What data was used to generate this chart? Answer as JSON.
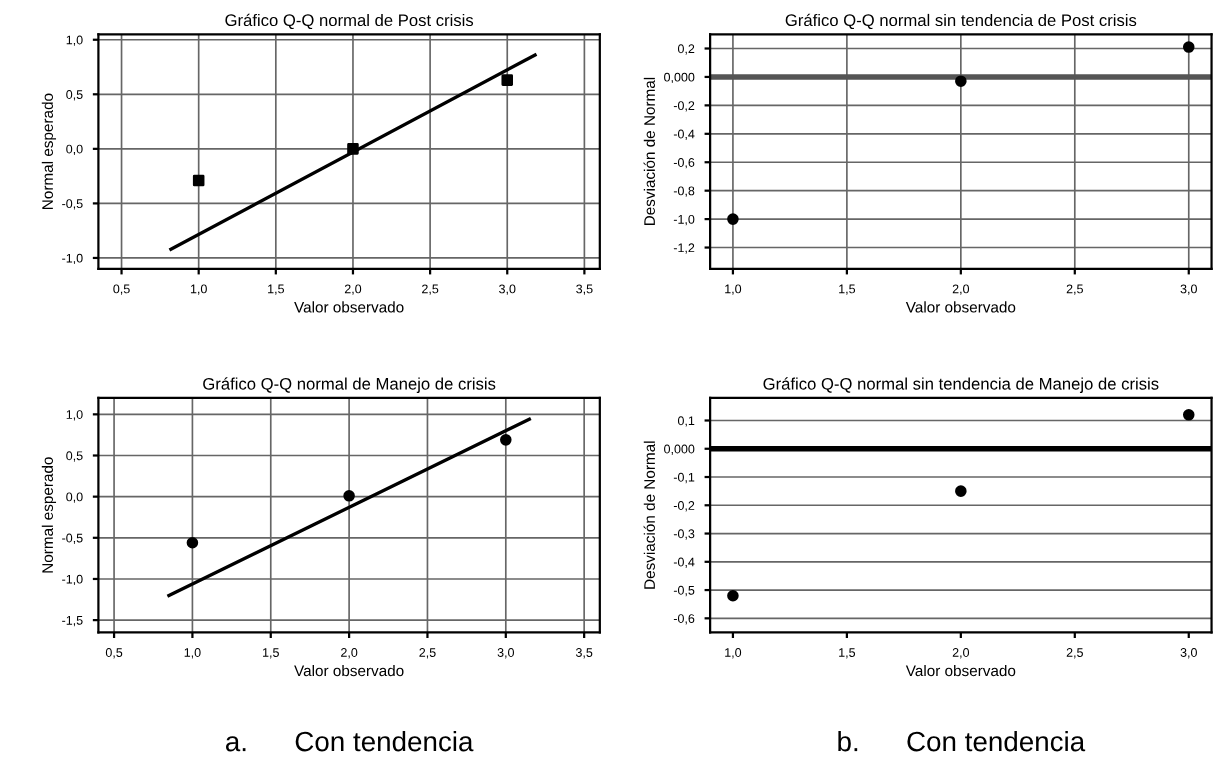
{
  "chart_data": [
    {
      "type": "scatter",
      "title": "Gráfico Q-Q normal de Post crisis",
      "xlabel": "Valor observado",
      "ylabel": "Normal esperado",
      "series": [
        {
          "color": "#000000",
          "marker": "square",
          "x": [
            1.0,
            2.0,
            3.0
          ],
          "values": [
            -0.29,
            0.0,
            0.63
          ]
        },
        {
          "type": "line",
          "color": "#000000",
          "x": [
            0.82,
            3.18
          ],
          "values": [
            -0.92,
            0.86
          ]
        }
      ],
      "xlim": [
        0.35,
        3.6
      ],
      "ylim": [
        -1.1,
        1.05
      ],
      "xticks": [
        {
          "value": 0.5,
          "label": "0,5"
        },
        {
          "value": 1.0,
          "label": "1,0"
        },
        {
          "value": 1.5,
          "label": "1,5"
        },
        {
          "value": 2.0,
          "label": "2,0"
        },
        {
          "value": 2.5,
          "label": "2,5"
        },
        {
          "value": 3.0,
          "label": "3,0"
        },
        {
          "value": 3.5,
          "label": "3,5"
        }
      ],
      "yticks": [
        {
          "value": -1.0,
          "label": "-1,0"
        },
        {
          "value": -0.5,
          "label": "-0,5"
        },
        {
          "value": 0.0,
          "label": "0,0"
        },
        {
          "value": 0.5,
          "label": "0,5"
        },
        {
          "value": 1.0,
          "label": "1,0"
        }
      ],
      "grid": true
    },
    {
      "type": "scatter",
      "title": "Gráfico Q-Q normal sin tendencia de Post crisis",
      "xlabel": "Valor observado",
      "ylabel": "Desviación de Normal",
      "series": [
        {
          "color": "#000000",
          "marker": "circle",
          "x": [
            1.0,
            2.0,
            3.0
          ],
          "values": [
            -1.0,
            -0.03,
            0.21
          ]
        }
      ],
      "xlim": [
        0.9,
        3.1
      ],
      "ylim": [
        -1.35,
        0.3
      ],
      "xticks": [
        {
          "value": 1.0,
          "label": "1,0"
        },
        {
          "value": 1.5,
          "label": "1,5"
        },
        {
          "value": 2.0,
          "label": "2,0"
        },
        {
          "value": 2.5,
          "label": "2,5"
        },
        {
          "value": 3.0,
          "label": "3,0"
        }
      ],
      "yticks": [
        {
          "value": -1.2,
          "label": "-1,2"
        },
        {
          "value": -1.0,
          "label": "-1,0"
        },
        {
          "value": -0.8,
          "label": "-0,8"
        },
        {
          "value": -0.6,
          "label": "-0,6"
        },
        {
          "value": -0.4,
          "label": "-0,4"
        },
        {
          "value": -0.2,
          "label": "-0,2"
        },
        {
          "value": 0.0,
          "label": "0,000"
        },
        {
          "value": 0.2,
          "label": "0,2"
        }
      ],
      "ref_lines": [
        {
          "axis": "y",
          "value": 0.0,
          "color": "#555555"
        }
      ],
      "grid": true
    },
    {
      "type": "scatter",
      "title": "Gráfico Q-Q normal de Manejo de crisis",
      "xlabel": "Valor observado",
      "ylabel": "Normal esperado",
      "series": [
        {
          "color": "#000000",
          "marker": "circle",
          "x": [
            1.0,
            2.0,
            3.0
          ],
          "values": [
            -0.56,
            0.01,
            0.69
          ]
        },
        {
          "type": "line",
          "color": "#000000",
          "x": [
            0.85,
            3.15
          ],
          "values": [
            -1.2,
            0.94
          ]
        }
      ],
      "xlim": [
        0.4,
        3.6
      ],
      "ylim": [
        -1.65,
        1.2
      ],
      "xticks": [
        {
          "value": 0.5,
          "label": "0,5"
        },
        {
          "value": 1.0,
          "label": "1,0"
        },
        {
          "value": 1.5,
          "label": "1,5"
        },
        {
          "value": 2.0,
          "label": "2,0"
        },
        {
          "value": 2.5,
          "label": "2,5"
        },
        {
          "value": 3.0,
          "label": "3,0"
        },
        {
          "value": 3.5,
          "label": "3,5"
        }
      ],
      "yticks": [
        {
          "value": -1.5,
          "label": "-1,5"
        },
        {
          "value": -1.0,
          "label": "-1,0"
        },
        {
          "value": -0.5,
          "label": "-0,5"
        },
        {
          "value": 0.0,
          "label": "0,0"
        },
        {
          "value": 0.5,
          "label": "0,5"
        },
        {
          "value": 1.0,
          "label": "1,0"
        }
      ],
      "grid": true,
      "annotations": [
        "a.      Con tendencia"
      ]
    },
    {
      "type": "scatter",
      "title": "Gráfico Q-Q normal sin tendencia de Manejo de crisis",
      "xlabel": "Valor observado",
      "ylabel": "Desviación de Normal",
      "series": [
        {
          "color": "#000000",
          "marker": "circle",
          "x": [
            1.0,
            2.0,
            3.0
          ],
          "values": [
            -0.52,
            -0.15,
            0.12
          ]
        }
      ],
      "xlim": [
        0.9,
        3.1
      ],
      "ylim": [
        -0.65,
        0.18
      ],
      "xticks": [
        {
          "value": 1.0,
          "label": "1,0"
        },
        {
          "value": 1.5,
          "label": "1,5"
        },
        {
          "value": 2.0,
          "label": "2,0"
        },
        {
          "value": 2.5,
          "label": "2,5"
        },
        {
          "value": 3.0,
          "label": "3,0"
        }
      ],
      "yticks": [
        {
          "value": -0.6,
          "label": "-0,6"
        },
        {
          "value": -0.5,
          "label": "-0,5"
        },
        {
          "value": -0.4,
          "label": "-0,4"
        },
        {
          "value": -0.3,
          "label": "-0,3"
        },
        {
          "value": -0.2,
          "label": "-0,2"
        },
        {
          "value": -0.1,
          "label": "-0,1"
        },
        {
          "value": 0.0,
          "label": "0,000"
        },
        {
          "value": 0.1,
          "label": "0,1"
        }
      ],
      "ref_lines": [
        {
          "axis": "y",
          "value": 0.0,
          "color": "#000000"
        }
      ],
      "grid": "y",
      "annotations": [
        "b.      Con tendencia"
      ]
    }
  ]
}
